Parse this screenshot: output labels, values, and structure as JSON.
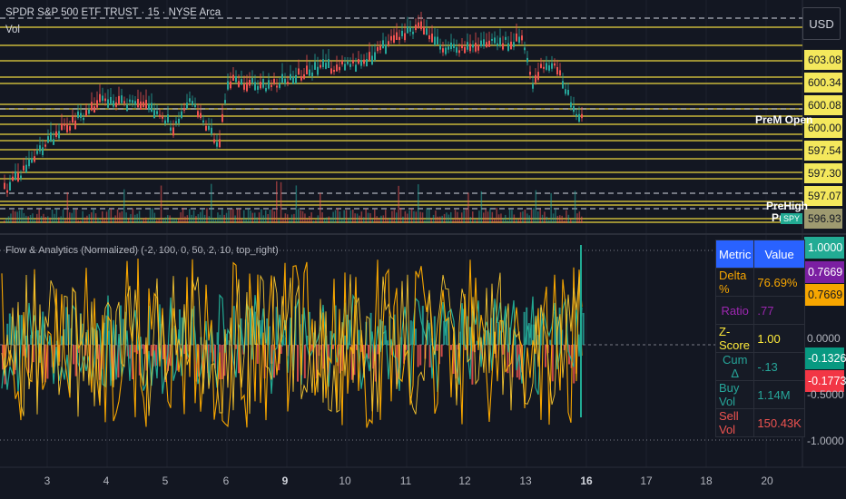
{
  "header": {
    "symbol_line": "SPDR S&P 500 ETF TRUST · 15 · NYSE Arca",
    "vol_label": "Vol",
    "currency_button": "USD"
  },
  "price_axis": {
    "labels": [
      "603.08",
      "600.34",
      "600.08",
      "600.00",
      "597.54",
      "597.30",
      "597.07",
      "596.93"
    ]
  },
  "level_labels": {
    "prem_open": "PreM Open",
    "pre_high": "PreHigh",
    "pr": "Pr",
    "spy": "SPY"
  },
  "indicator": {
    "title": "Flow & Analytics (Normalized) (-2, 100, 0, 50, 2, 10, top_right)",
    "value_tags": [
      "1.0000",
      "0.7669",
      "0.7669",
      "-0.1326",
      "-0.1773"
    ],
    "axis_labels": [
      "0.0000",
      "-0.5000",
      "-1.0000"
    ]
  },
  "metrics_table": {
    "header": {
      "metric": "Metric",
      "value": "Value"
    },
    "rows": [
      {
        "metric": "Delta %",
        "value": "76.69%",
        "color": "#f7a600"
      },
      {
        "metric": "Ratio",
        "value": ".77",
        "color": "#9c27b0"
      },
      {
        "metric": "Z-Score",
        "value": "1.00",
        "color": "#ffeb3b"
      },
      {
        "metric": "Cum Δ",
        "value": "-.13",
        "color": "#26a69a"
      },
      {
        "metric": "Buy Vol",
        "value": "1.14M",
        "color": "#26a69a"
      },
      {
        "metric": "Sell Vol",
        "value": "150.43K",
        "color": "#ef5350"
      }
    ]
  },
  "time_axis": {
    "labels": [
      "3",
      "4",
      "5",
      "6",
      "9",
      "10",
      "11",
      "12",
      "13",
      "16",
      "17",
      "18",
      "20"
    ]
  },
  "colors": {
    "background": "#131722",
    "up": "#26a69a",
    "down": "#ef5350",
    "level_line": "#c9b83a",
    "price_tag": "#f4e85c",
    "orange": "#f7a600",
    "accent": "#2962ff"
  }
}
